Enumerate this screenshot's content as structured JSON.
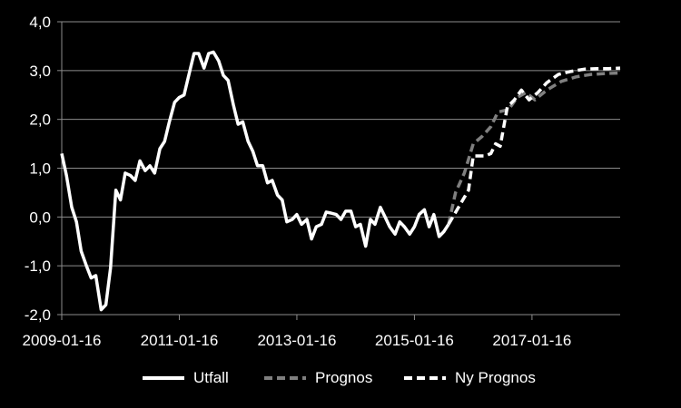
{
  "chart_data": {
    "type": "line",
    "title": "",
    "xlabel": "",
    "ylabel": "",
    "ylim": [
      -2.0,
      4.0
    ],
    "y_ticks": [
      "4,0",
      "3,0",
      "2,0",
      "1,0",
      "0,0",
      "-1,0",
      "-2,0"
    ],
    "y_tick_values": [
      4,
      3,
      2,
      1,
      0,
      -1,
      -2
    ],
    "x_ticks": [
      "2009-01-16",
      "2011-01-16",
      "2013-01-16",
      "2015-01-16",
      "2017-01-16"
    ],
    "x_tick_values": [
      2009.0,
      2011.0,
      2013.0,
      2015.0,
      2017.0
    ],
    "xlim": [
      2009.0,
      2018.5
    ],
    "grid": true,
    "legend_position": "bottom",
    "series": [
      {
        "name": "Utfall",
        "color": "#ffffff",
        "dash": "solid",
        "points": [
          [
            2009.0,
            1.3
          ],
          [
            2009.08,
            0.85
          ],
          [
            2009.17,
            0.2
          ],
          [
            2009.25,
            -0.1
          ],
          [
            2009.33,
            -0.7
          ],
          [
            2009.42,
            -1.0
          ],
          [
            2009.5,
            -1.25
          ],
          [
            2009.58,
            -1.2
          ],
          [
            2009.67,
            -1.9
          ],
          [
            2009.75,
            -1.8
          ],
          [
            2009.83,
            -1.05
          ],
          [
            2009.92,
            0.55
          ],
          [
            2010.0,
            0.35
          ],
          [
            2010.08,
            0.9
          ],
          [
            2010.17,
            0.85
          ],
          [
            2010.25,
            0.75
          ],
          [
            2010.33,
            1.15
          ],
          [
            2010.42,
            0.95
          ],
          [
            2010.5,
            1.05
          ],
          [
            2010.58,
            0.9
          ],
          [
            2010.67,
            1.4
          ],
          [
            2010.75,
            1.55
          ],
          [
            2010.83,
            1.95
          ],
          [
            2010.92,
            2.35
          ],
          [
            2011.0,
            2.45
          ],
          [
            2011.08,
            2.5
          ],
          [
            2011.17,
            2.95
          ],
          [
            2011.25,
            3.35
          ],
          [
            2011.33,
            3.35
          ],
          [
            2011.42,
            3.05
          ],
          [
            2011.5,
            3.35
          ],
          [
            2011.58,
            3.38
          ],
          [
            2011.67,
            3.2
          ],
          [
            2011.75,
            2.9
          ],
          [
            2011.83,
            2.8
          ],
          [
            2011.92,
            2.3
          ],
          [
            2012.0,
            1.9
          ],
          [
            2012.08,
            1.95
          ],
          [
            2012.17,
            1.55
          ],
          [
            2012.25,
            1.35
          ],
          [
            2012.33,
            1.05
          ],
          [
            2012.42,
            1.05
          ],
          [
            2012.5,
            0.7
          ],
          [
            2012.58,
            0.75
          ],
          [
            2012.67,
            0.45
          ],
          [
            2012.75,
            0.35
          ],
          [
            2012.83,
            -0.1
          ],
          [
            2012.92,
            -0.05
          ],
          [
            2013.0,
            0.05
          ],
          [
            2013.08,
            -0.15
          ],
          [
            2013.17,
            -0.05
          ],
          [
            2013.25,
            -0.45
          ],
          [
            2013.33,
            -0.2
          ],
          [
            2013.42,
            -0.15
          ],
          [
            2013.5,
            0.1
          ],
          [
            2013.58,
            0.08
          ],
          [
            2013.67,
            0.05
          ],
          [
            2013.75,
            -0.05
          ],
          [
            2013.83,
            0.12
          ],
          [
            2013.92,
            0.12
          ],
          [
            2014.0,
            -0.2
          ],
          [
            2014.08,
            -0.15
          ],
          [
            2014.17,
            -0.6
          ],
          [
            2014.25,
            -0.05
          ],
          [
            2014.33,
            -0.15
          ],
          [
            2014.42,
            0.2
          ],
          [
            2014.5,
            0.0
          ],
          [
            2014.58,
            -0.2
          ],
          [
            2014.67,
            -0.35
          ],
          [
            2014.75,
            -0.1
          ],
          [
            2014.83,
            -0.2
          ],
          [
            2014.92,
            -0.35
          ],
          [
            2015.0,
            -0.2
          ],
          [
            2015.08,
            0.05
          ],
          [
            2015.17,
            0.15
          ],
          [
            2015.25,
            -0.2
          ],
          [
            2015.33,
            0.05
          ],
          [
            2015.42,
            -0.4
          ],
          [
            2015.5,
            -0.3
          ],
          [
            2015.58,
            -0.15
          ]
        ]
      },
      {
        "name": "Prognos",
        "color": "#7f7f7f",
        "dash": "dashed",
        "points": [
          [
            2015.58,
            -0.15
          ],
          [
            2015.7,
            0.5
          ],
          [
            2015.85,
            0.9
          ],
          [
            2016.0,
            1.5
          ],
          [
            2016.15,
            1.65
          ],
          [
            2016.3,
            1.85
          ],
          [
            2016.42,
            2.15
          ],
          [
            2016.6,
            2.2
          ],
          [
            2016.75,
            2.45
          ],
          [
            2016.9,
            2.55
          ],
          [
            2017.05,
            2.4
          ],
          [
            2017.25,
            2.6
          ],
          [
            2017.5,
            2.78
          ],
          [
            2017.75,
            2.87
          ],
          [
            2018.0,
            2.92
          ],
          [
            2018.25,
            2.94
          ],
          [
            2018.5,
            2.95
          ]
        ]
      },
      {
        "name": "Ny Prognos",
        "color": "#ffffff",
        "dash": "dashed",
        "points": [
          [
            2015.58,
            -0.15
          ],
          [
            2015.75,
            0.2
          ],
          [
            2015.92,
            0.55
          ],
          [
            2016.0,
            1.25
          ],
          [
            2016.1,
            1.25
          ],
          [
            2016.2,
            1.25
          ],
          [
            2016.3,
            1.3
          ],
          [
            2016.38,
            1.5
          ],
          [
            2016.46,
            1.45
          ],
          [
            2016.58,
            2.25
          ],
          [
            2016.7,
            2.4
          ],
          [
            2016.82,
            2.6
          ],
          [
            2016.95,
            2.4
          ],
          [
            2017.1,
            2.55
          ],
          [
            2017.25,
            2.75
          ],
          [
            2017.45,
            2.92
          ],
          [
            2017.65,
            2.98
          ],
          [
            2017.9,
            3.03
          ],
          [
            2018.1,
            3.04
          ],
          [
            2018.3,
            3.04
          ],
          [
            2018.5,
            3.05
          ]
        ]
      }
    ]
  }
}
